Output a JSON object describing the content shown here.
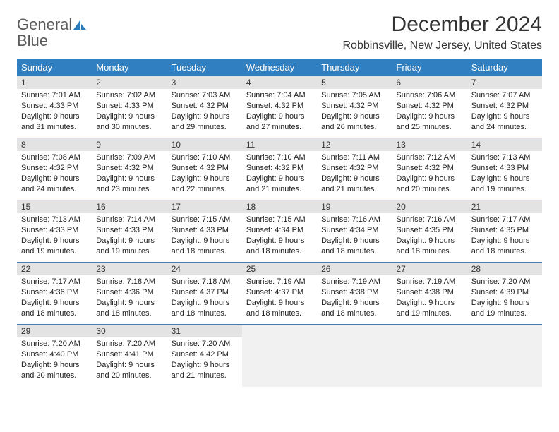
{
  "logo": {
    "word1": "General",
    "word2": "Blue"
  },
  "title": "December 2024",
  "location": "Robbinsville, New Jersey, United States",
  "colors": {
    "header_bg": "#2f7fc1",
    "header_text": "#ffffff",
    "daynum_bg": "#e3e3e3",
    "cell_border": "#4a7bb0",
    "empty_bg": "#f1f1f1",
    "text": "#222222",
    "logo_gray": "#5a5a5a",
    "logo_blue": "#2a7ab9"
  },
  "typography": {
    "title_fontsize": 30,
    "location_fontsize": 16,
    "weekday_fontsize": 13,
    "daynum_fontsize": 12,
    "body_fontsize": 11
  },
  "weekdays": [
    "Sunday",
    "Monday",
    "Tuesday",
    "Wednesday",
    "Thursday",
    "Friday",
    "Saturday"
  ],
  "weeks": [
    [
      {
        "n": "1",
        "sr": "Sunrise: 7:01 AM",
        "ss": "Sunset: 4:33 PM",
        "d1": "Daylight: 9 hours",
        "d2": "and 31 minutes."
      },
      {
        "n": "2",
        "sr": "Sunrise: 7:02 AM",
        "ss": "Sunset: 4:33 PM",
        "d1": "Daylight: 9 hours",
        "d2": "and 30 minutes."
      },
      {
        "n": "3",
        "sr": "Sunrise: 7:03 AM",
        "ss": "Sunset: 4:32 PM",
        "d1": "Daylight: 9 hours",
        "d2": "and 29 minutes."
      },
      {
        "n": "4",
        "sr": "Sunrise: 7:04 AM",
        "ss": "Sunset: 4:32 PM",
        "d1": "Daylight: 9 hours",
        "d2": "and 27 minutes."
      },
      {
        "n": "5",
        "sr": "Sunrise: 7:05 AM",
        "ss": "Sunset: 4:32 PM",
        "d1": "Daylight: 9 hours",
        "d2": "and 26 minutes."
      },
      {
        "n": "6",
        "sr": "Sunrise: 7:06 AM",
        "ss": "Sunset: 4:32 PM",
        "d1": "Daylight: 9 hours",
        "d2": "and 25 minutes."
      },
      {
        "n": "7",
        "sr": "Sunrise: 7:07 AM",
        "ss": "Sunset: 4:32 PM",
        "d1": "Daylight: 9 hours",
        "d2": "and 24 minutes."
      }
    ],
    [
      {
        "n": "8",
        "sr": "Sunrise: 7:08 AM",
        "ss": "Sunset: 4:32 PM",
        "d1": "Daylight: 9 hours",
        "d2": "and 24 minutes."
      },
      {
        "n": "9",
        "sr": "Sunrise: 7:09 AM",
        "ss": "Sunset: 4:32 PM",
        "d1": "Daylight: 9 hours",
        "d2": "and 23 minutes."
      },
      {
        "n": "10",
        "sr": "Sunrise: 7:10 AM",
        "ss": "Sunset: 4:32 PM",
        "d1": "Daylight: 9 hours",
        "d2": "and 22 minutes."
      },
      {
        "n": "11",
        "sr": "Sunrise: 7:10 AM",
        "ss": "Sunset: 4:32 PM",
        "d1": "Daylight: 9 hours",
        "d2": "and 21 minutes."
      },
      {
        "n": "12",
        "sr": "Sunrise: 7:11 AM",
        "ss": "Sunset: 4:32 PM",
        "d1": "Daylight: 9 hours",
        "d2": "and 21 minutes."
      },
      {
        "n": "13",
        "sr": "Sunrise: 7:12 AM",
        "ss": "Sunset: 4:32 PM",
        "d1": "Daylight: 9 hours",
        "d2": "and 20 minutes."
      },
      {
        "n": "14",
        "sr": "Sunrise: 7:13 AM",
        "ss": "Sunset: 4:33 PM",
        "d1": "Daylight: 9 hours",
        "d2": "and 19 minutes."
      }
    ],
    [
      {
        "n": "15",
        "sr": "Sunrise: 7:13 AM",
        "ss": "Sunset: 4:33 PM",
        "d1": "Daylight: 9 hours",
        "d2": "and 19 minutes."
      },
      {
        "n": "16",
        "sr": "Sunrise: 7:14 AM",
        "ss": "Sunset: 4:33 PM",
        "d1": "Daylight: 9 hours",
        "d2": "and 19 minutes."
      },
      {
        "n": "17",
        "sr": "Sunrise: 7:15 AM",
        "ss": "Sunset: 4:33 PM",
        "d1": "Daylight: 9 hours",
        "d2": "and 18 minutes."
      },
      {
        "n": "18",
        "sr": "Sunrise: 7:15 AM",
        "ss": "Sunset: 4:34 PM",
        "d1": "Daylight: 9 hours",
        "d2": "and 18 minutes."
      },
      {
        "n": "19",
        "sr": "Sunrise: 7:16 AM",
        "ss": "Sunset: 4:34 PM",
        "d1": "Daylight: 9 hours",
        "d2": "and 18 minutes."
      },
      {
        "n": "20",
        "sr": "Sunrise: 7:16 AM",
        "ss": "Sunset: 4:35 PM",
        "d1": "Daylight: 9 hours",
        "d2": "and 18 minutes."
      },
      {
        "n": "21",
        "sr": "Sunrise: 7:17 AM",
        "ss": "Sunset: 4:35 PM",
        "d1": "Daylight: 9 hours",
        "d2": "and 18 minutes."
      }
    ],
    [
      {
        "n": "22",
        "sr": "Sunrise: 7:17 AM",
        "ss": "Sunset: 4:36 PM",
        "d1": "Daylight: 9 hours",
        "d2": "and 18 minutes."
      },
      {
        "n": "23",
        "sr": "Sunrise: 7:18 AM",
        "ss": "Sunset: 4:36 PM",
        "d1": "Daylight: 9 hours",
        "d2": "and 18 minutes."
      },
      {
        "n": "24",
        "sr": "Sunrise: 7:18 AM",
        "ss": "Sunset: 4:37 PM",
        "d1": "Daylight: 9 hours",
        "d2": "and 18 minutes."
      },
      {
        "n": "25",
        "sr": "Sunrise: 7:19 AM",
        "ss": "Sunset: 4:37 PM",
        "d1": "Daylight: 9 hours",
        "d2": "and 18 minutes."
      },
      {
        "n": "26",
        "sr": "Sunrise: 7:19 AM",
        "ss": "Sunset: 4:38 PM",
        "d1": "Daylight: 9 hours",
        "d2": "and 18 minutes."
      },
      {
        "n": "27",
        "sr": "Sunrise: 7:19 AM",
        "ss": "Sunset: 4:38 PM",
        "d1": "Daylight: 9 hours",
        "d2": "and 19 minutes."
      },
      {
        "n": "28",
        "sr": "Sunrise: 7:20 AM",
        "ss": "Sunset: 4:39 PM",
        "d1": "Daylight: 9 hours",
        "d2": "and 19 minutes."
      }
    ],
    [
      {
        "n": "29",
        "sr": "Sunrise: 7:20 AM",
        "ss": "Sunset: 4:40 PM",
        "d1": "Daylight: 9 hours",
        "d2": "and 20 minutes."
      },
      {
        "n": "30",
        "sr": "Sunrise: 7:20 AM",
        "ss": "Sunset: 4:41 PM",
        "d1": "Daylight: 9 hours",
        "d2": "and 20 minutes."
      },
      {
        "n": "31",
        "sr": "Sunrise: 7:20 AM",
        "ss": "Sunset: 4:42 PM",
        "d1": "Daylight: 9 hours",
        "d2": "and 21 minutes."
      },
      null,
      null,
      null,
      null
    ]
  ]
}
